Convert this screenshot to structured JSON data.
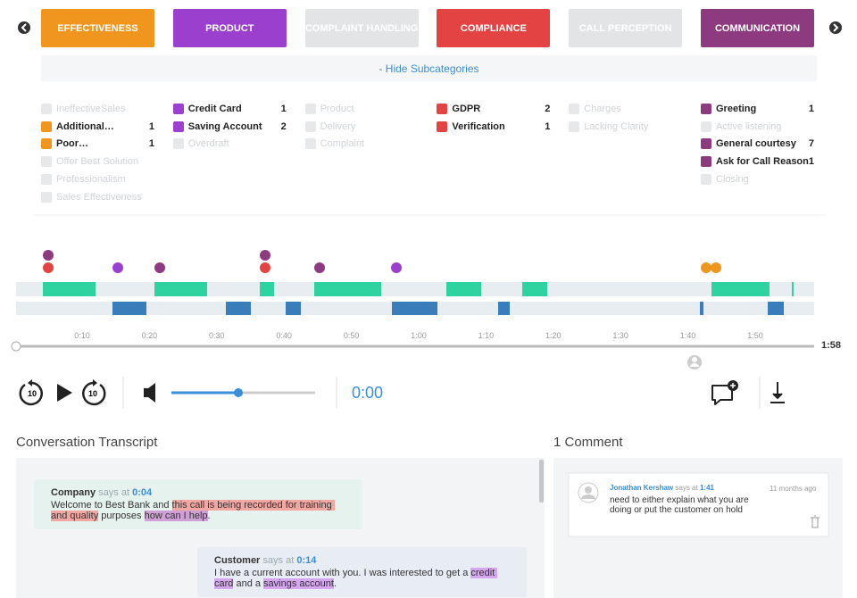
{
  "tabs": [
    {
      "label": "EFFECTIVENESS",
      "color": "#f0961e",
      "active": true
    },
    {
      "label": "PRODUCT",
      "color": "#9b3fcf",
      "active": true
    },
    {
      "label": "COMPLAINT HANDLING",
      "color": "#e2e4e6",
      "active": false
    },
    {
      "label": "COMPLIANCE",
      "color": "#e34343",
      "active": true
    },
    {
      "label": "CALL PERCEPTION",
      "color": "#e2e4e6",
      "active": false
    },
    {
      "label": "COMMUNICATION",
      "color": "#8e3a80",
      "active": true
    }
  ],
  "hide_subcategories": "- Hide Subcategories",
  "subcategories": [
    [
      {
        "label": "IneffectiveSales",
        "active": false
      },
      {
        "label": "Additional…",
        "count": 1,
        "active": true
      },
      {
        "label": "Poor…",
        "count": 1,
        "active": true
      },
      {
        "label": "Offer Best Solution",
        "active": false
      },
      {
        "label": "Professionalism",
        "active": false
      },
      {
        "label": "Sales Effectiveness",
        "active": false
      }
    ],
    [
      {
        "label": "Credit Card",
        "count": 1,
        "active": true
      },
      {
        "label": "Saving Account",
        "count": 2,
        "active": true
      },
      {
        "label": "Overdraft",
        "active": false
      }
    ],
    [
      {
        "label": "Product",
        "active": false
      },
      {
        "label": "Delivery",
        "active": false
      },
      {
        "label": "Complaint",
        "active": false
      }
    ],
    [
      {
        "label": "GDPR",
        "count": 2,
        "active": true
      },
      {
        "label": "Verification",
        "count": 1,
        "active": true
      }
    ],
    [
      {
        "label": "Charges",
        "active": false
      },
      {
        "label": "Lacking Clarity",
        "active": false
      }
    ],
    [
      {
        "label": "Greeting",
        "count": 1,
        "active": true
      },
      {
        "label": "Active listening",
        "active": false
      },
      {
        "label": "General courtesy",
        "count": 7,
        "active": true
      },
      {
        "label": "Ask for Call Reason",
        "count": 1,
        "active": true
      },
      {
        "label": "Closing",
        "active": false
      }
    ]
  ],
  "timeline": {
    "ticks": [
      "0:10",
      "0:20",
      "0:30",
      "0:40",
      "0:50",
      "1:00",
      "1:10",
      "1:20",
      "1:30",
      "1:40",
      "1:50"
    ],
    "duration": "1:58"
  },
  "player": {
    "time": "0:00"
  },
  "transcript": {
    "title": "Conversation Transcript",
    "messages": [
      {
        "speaker": "Company",
        "says_at": "says at",
        "time": "0:04",
        "segments": [
          {
            "text": "Welcome to Best Bank and "
          },
          {
            "text": "this call is being recorded for training and quality",
            "highlight": "#f2a7a3"
          },
          {
            "text": " purposes "
          },
          {
            "text": "how can I help",
            "highlight": "#cfa0d6"
          },
          {
            "text": "."
          }
        ]
      },
      {
        "speaker": "Customer",
        "says_at": "says at",
        "time": "0:14",
        "segments": [
          {
            "text": "I have a current account with you. I was interested to get a "
          },
          {
            "text": "credit card",
            "highlight": "#d6a6ee"
          },
          {
            "text": " and a "
          },
          {
            "text": "savings account",
            "highlight": "#d6a6ee"
          },
          {
            "text": "."
          }
        ]
      }
    ]
  },
  "comments": {
    "title": "1 Comment",
    "items": [
      {
        "author": "Jonathan Kershaw",
        "says_at": "says at",
        "time": "1:41",
        "ago": "11 months ago",
        "text": "need to either explain what you are doing or put the customer on hold"
      }
    ]
  }
}
